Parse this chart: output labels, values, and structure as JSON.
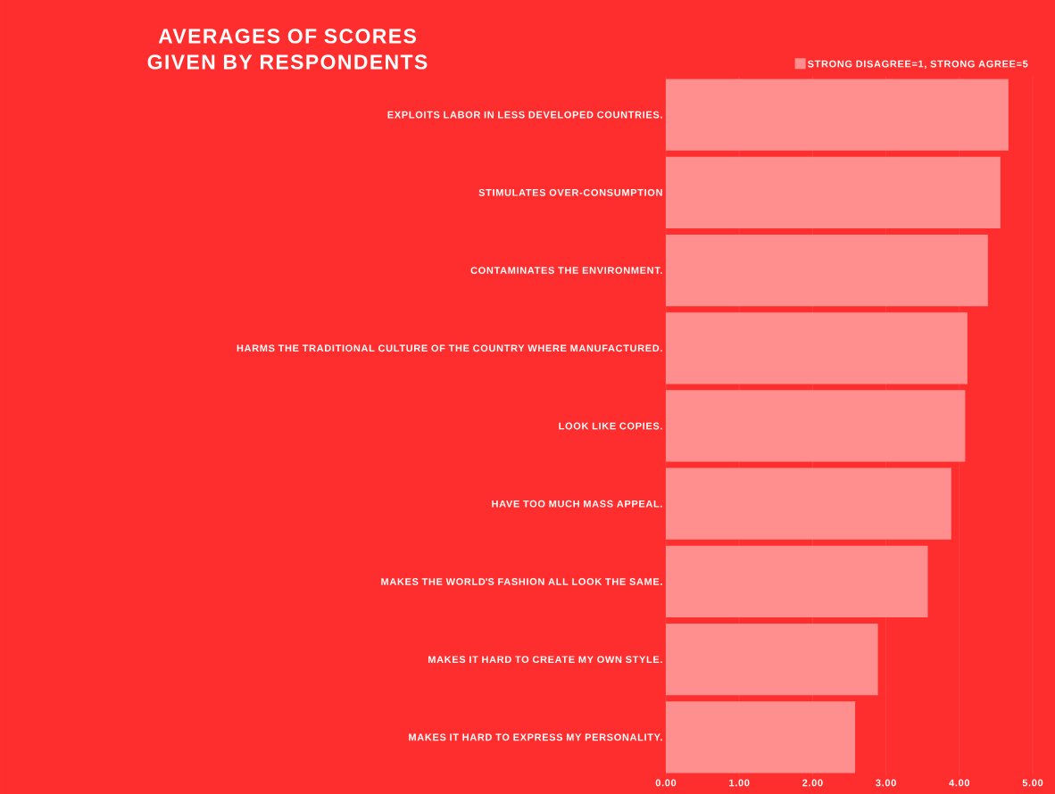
{
  "chart_data": {
    "type": "bar",
    "orientation": "horizontal",
    "title": "AVERAGES OF SCORES GIVEN BY RESPONDENTS",
    "categories": [
      "EXPLOITS LABOR IN LESS DEVELOPED COUNTRIES.",
      "STIMULATES OVER-CONSUMPTION",
      "CONTAMINATES THE ENVIRONMENT.",
      "HARMS THE TRADITIONAL CULTURE OF THE COUNTRY WHERE MANUFACTURED.",
      "LOOK LIKE COPIES.",
      "HAVE TOO MUCH MASS APPEAL.",
      "MAKES THE WORLD'S FASHION ALL LOOK THE SAME.",
      "MAKES IT HARD TO CREATE MY OWN STYLE.",
      "MAKES IT HARD TO EXPRESS MY PERSONALITY."
    ],
    "series": [
      {
        "name": "STRONG DISAGREE=1, STRONG AGREE=5",
        "color": "#ff8f8f",
        "values": [
          4.67,
          4.56,
          4.39,
          4.11,
          4.08,
          3.89,
          3.57,
          2.89,
          2.58
        ]
      }
    ],
    "xlim": [
      0,
      5
    ],
    "xticks": [
      {
        "value": 0,
        "label": "0.00"
      },
      {
        "value": 1,
        "label": "1.00"
      },
      {
        "value": 2,
        "label": "2.00"
      },
      {
        "value": 3,
        "label": "3.00"
      },
      {
        "value": 4,
        "label": "4.00"
      },
      {
        "value": 5,
        "label": "5.00"
      }
    ],
    "grid": "x",
    "legend": "top right"
  }
}
